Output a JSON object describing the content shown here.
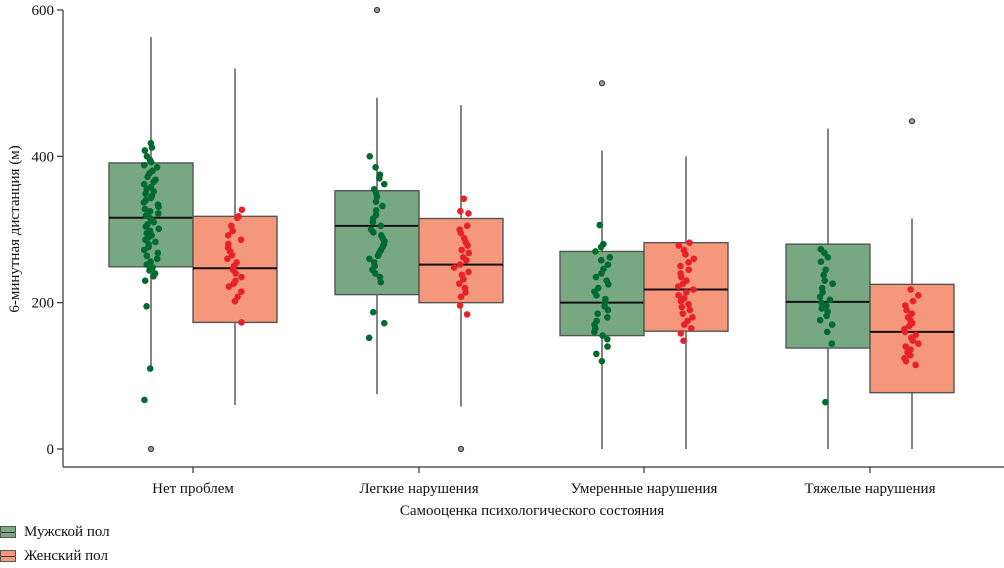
{
  "chart_data": {
    "type": "box",
    "title": "",
    "xlabel": "Самооценка психологического состояния",
    "ylabel": "6-минутная дистанция (м)",
    "ylim": [
      -25,
      600
    ],
    "yticks": [
      0,
      200,
      400,
      600
    ],
    "categories": [
      "Нет проблем",
      "Легкие нарушения",
      "Умеренные нарушения",
      "Тяжелые нарушения"
    ],
    "legend_position": "bottom-left",
    "series": [
      {
        "name": "Мужской пол",
        "box_color": "#78a882",
        "point_color": "#006b2e",
        "boxes": [
          {
            "whisker_low": 110,
            "q1": 249,
            "median": 316,
            "q3": 391,
            "whisker_high": 563,
            "outliers": [
              0
            ],
            "points": [
              418,
              412,
              408,
              400,
              395,
              392,
              388,
              385,
              380,
              377,
              372,
              368,
              365,
              362,
              358,
              355,
              352,
              349,
              346,
              343,
              340,
              337,
              334,
              331,
              328,
              325,
              322,
              319,
              316,
              313,
              310,
              307,
              304,
              301,
              298,
              295,
              292,
              289,
              286,
              283,
              280,
              276,
              272,
              268,
              264,
              260,
              256,
              252,
              248,
              244,
              240,
              236,
              230,
              195,
              110,
              67
            ]
          },
          {
            "whisker_low": 75,
            "q1": 211,
            "median": 305,
            "q3": 353,
            "whisker_high": 480,
            "outliers": [
              600
            ],
            "points": [
              400,
              385,
              375,
              370,
              362,
              355,
              350,
              345,
              338,
              332,
              326,
              320,
              315,
              310,
              305,
              300,
              296,
              292,
              288,
              284,
              280,
              276,
              272,
              268,
              264,
              260,
              255,
              250,
              245,
              240,
              235,
              228,
              187,
              172,
              152
            ]
          },
          {
            "whisker_low": 0,
            "q1": 155,
            "median": 200,
            "q3": 270,
            "whisker_high": 408,
            "outliers": [
              500
            ],
            "points": [
              306,
              280,
              276,
              270,
              262,
              258,
              252,
              246,
              240,
              235,
              230,
              225,
              220,
              215,
              210,
              205,
              200,
              195,
              190,
              185,
              180,
              175,
              170,
              165,
              160,
              155,
              150,
              140,
              130,
              120
            ]
          },
          {
            "whisker_low": 0,
            "q1": 138,
            "median": 201,
            "q3": 280,
            "whisker_high": 438,
            "outliers": [],
            "points": [
              273,
              268,
              262,
              256,
              245,
              238,
              230,
              226,
              220,
              214,
              208,
              204,
              200,
              196,
              192,
              188,
              182,
              176,
              170,
              160,
              144,
              64
            ]
          }
        ]
      },
      {
        "name": "Женский пол",
        "box_color": "#f4977a",
        "point_color": "#e8202a",
        "boxes": [
          {
            "whisker_low": 60,
            "q1": 173,
            "median": 247,
            "q3": 318,
            "whisker_high": 520,
            "outliers": [],
            "points": [
              327,
              318,
              316,
              305,
              298,
              292,
              286,
              280,
              275,
              270,
              265,
              260,
              255,
              250,
              245,
              240,
              235,
              230,
              226,
              222,
              215,
              208,
              202,
              173
            ]
          },
          {
            "whisker_low": 58,
            "q1": 200,
            "median": 252,
            "q3": 315,
            "whisker_high": 470,
            "outliers": [
              0
            ],
            "points": [
              342,
              325,
              322,
              305,
              300,
              295,
              288,
              283,
              278,
              272,
              268,
              262,
              258,
              252,
              248,
              242,
              238,
              232,
              226,
              220,
              214,
              208,
              196,
              184
            ]
          },
          {
            "whisker_low": 0,
            "q1": 161,
            "median": 218,
            "q3": 282,
            "whisker_high": 400,
            "outliers": [],
            "points": [
              282,
              278,
              272,
              266,
              260,
              255,
              250,
              245,
              240,
              235,
              230,
              226,
              222,
              218,
              214,
              210,
              206,
              202,
              198,
              194,
              190,
              185,
              180,
              175,
              170,
              165,
              158,
              148
            ]
          },
          {
            "whisker_low": 0,
            "q1": 77,
            "median": 160,
            "q3": 225,
            "whisker_high": 315,
            "outliers": [
              448
            ],
            "points": [
              218,
              210,
              202,
              196,
              190,
              185,
              180,
              176,
              172,
              168,
              164,
              160,
              156,
              152,
              148,
              144,
              140,
              136,
              132,
              128,
              124,
              120,
              115
            ]
          }
        ]
      }
    ]
  }
}
